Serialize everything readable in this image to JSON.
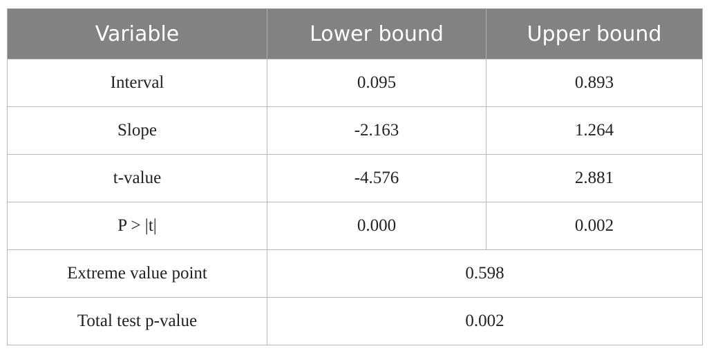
{
  "table": {
    "header": [
      "Variable",
      "Lower bound",
      "Upper bound"
    ],
    "rows": [
      [
        "Interval",
        "0.095",
        "0.893"
      ],
      [
        "Slope",
        "-2.163",
        "1.264"
      ],
      [
        "t-value",
        "-4.576",
        "2.881"
      ],
      [
        "P > |t|",
        "0.000",
        "0.002"
      ],
      [
        "Extreme value point",
        "0.598"
      ],
      [
        "Total test p-value",
        "0.002"
      ]
    ]
  }
}
